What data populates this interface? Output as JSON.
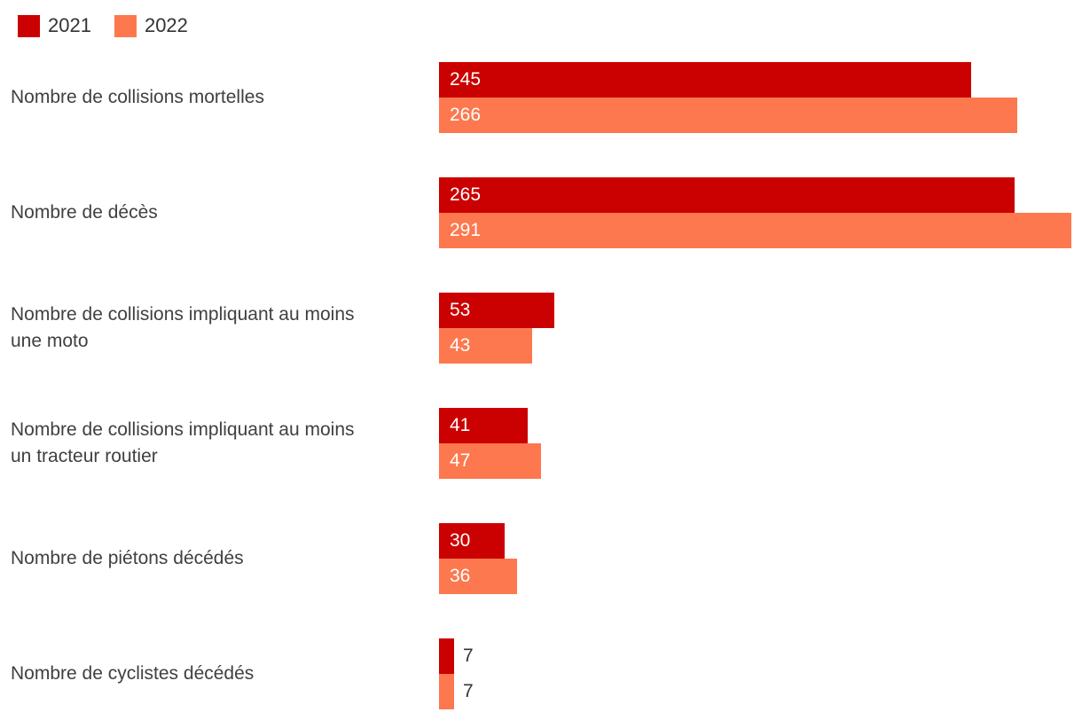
{
  "chart": {
    "background_color": "#ffffff",
    "label_text_color": "#404040",
    "value_inside_color": "#ffffff",
    "value_outside_color": "#333333"
  },
  "legend": {
    "items": [
      {
        "label": "2021",
        "color": "#cb0000"
      },
      {
        "label": "2022",
        "color": "#fd784e"
      }
    ]
  },
  "chart_data": {
    "type": "bar",
    "orientation": "horizontal",
    "categories": [
      "Nombre de collisions mortelles",
      "Nombre de décès",
      "Nombre de collisions impliquant au moins\nune moto",
      "Nombre de collisions impliquant au moins\nun tracteur routier",
      "Nombre de piétons décédés",
      "Nombre de cyclistes décédés"
    ],
    "series": [
      {
        "name": "2021",
        "color": "#cb0000",
        "values": [
          245,
          265,
          53,
          41,
          30,
          7
        ]
      },
      {
        "name": "2022",
        "color": "#fd784e",
        "values": [
          266,
          291,
          43,
          47,
          36,
          7
        ]
      }
    ],
    "xlim": [
      0,
      291
    ],
    "grid": false,
    "axis_ticks": false,
    "legend_position": "top-left",
    "value_labels": true,
    "value_label_placement": "inside-start, outside-end for very small bars"
  }
}
